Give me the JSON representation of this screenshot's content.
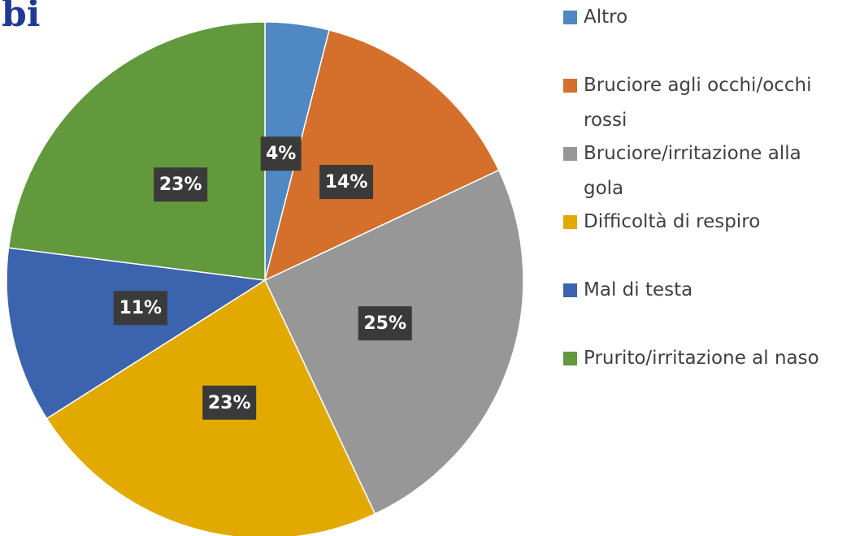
{
  "chart_data": {
    "type": "pie",
    "title": "bi",
    "categories": [
      "Altro",
      "Bruciore agli occhi/occhi rossi",
      "Bruciore/irritazione alla gola",
      "Difficoltà  di respiro",
      "Mal di testa",
      "Prurito/irritazione al naso"
    ],
    "values": [
      4,
      14,
      25,
      23,
      11,
      23
    ],
    "value_labels": [
      "4%",
      "14%",
      "25%",
      "23%",
      "11%",
      "23%"
    ],
    "colors": [
      "#4f88c2",
      "#d4702b",
      "#979797",
      "#e2aa00",
      "#3b63ae",
      "#62993d"
    ],
    "legend": "right"
  }
}
